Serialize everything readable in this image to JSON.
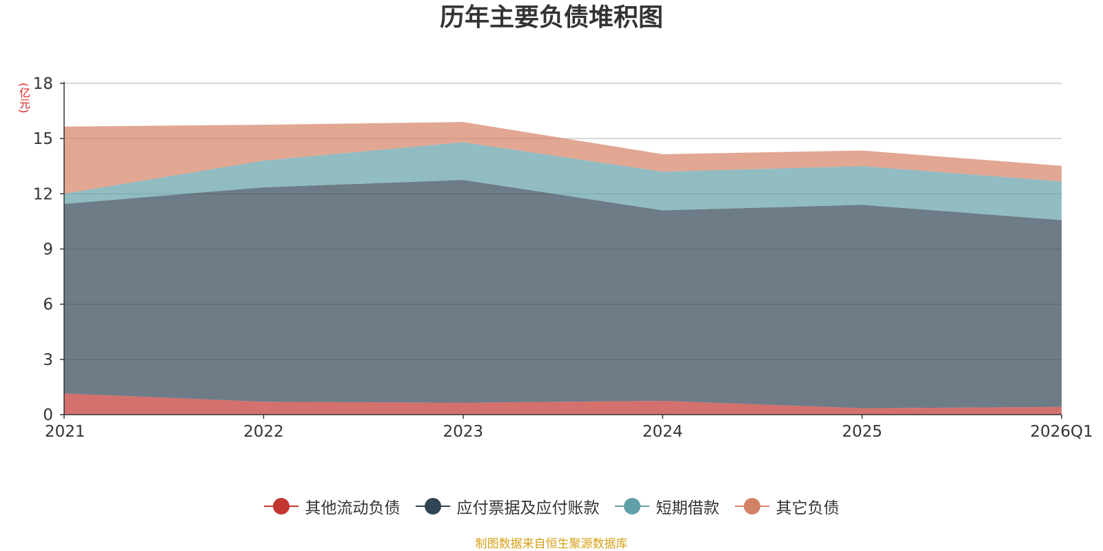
{
  "chart_data": {
    "type": "area",
    "stacked": true,
    "title": "历年主要负债堆积图",
    "ylabel": "(亿元)",
    "xlabel": "",
    "ylim": [
      0,
      18
    ],
    "yticks": [
      0,
      3,
      6,
      9,
      12,
      15,
      18
    ],
    "grid": true,
    "legend_position": "bottom",
    "categories": [
      "2021",
      "2022",
      "2023",
      "2024",
      "2025",
      "2026Q1"
    ],
    "series": [
      {
        "name": "其他流动负债",
        "color": "#c23531",
        "values": [
          1.15,
          0.7,
          0.65,
          0.75,
          0.35,
          0.42
        ]
      },
      {
        "name": "应付票据及应付账款",
        "color": "#2f4554",
        "values": [
          10.3,
          11.65,
          12.1,
          10.35,
          11.05,
          10.15
        ]
      },
      {
        "name": "短期借款",
        "color": "#61a0a8",
        "values": [
          0.55,
          1.45,
          2.05,
          2.1,
          2.1,
          2.1
        ]
      },
      {
        "name": "其它负债",
        "color": "#d48265",
        "values": [
          3.65,
          1.95,
          1.1,
          0.95,
          0.85,
          0.85
        ]
      }
    ],
    "source": "制图数据来自恒生聚源数据库"
  }
}
